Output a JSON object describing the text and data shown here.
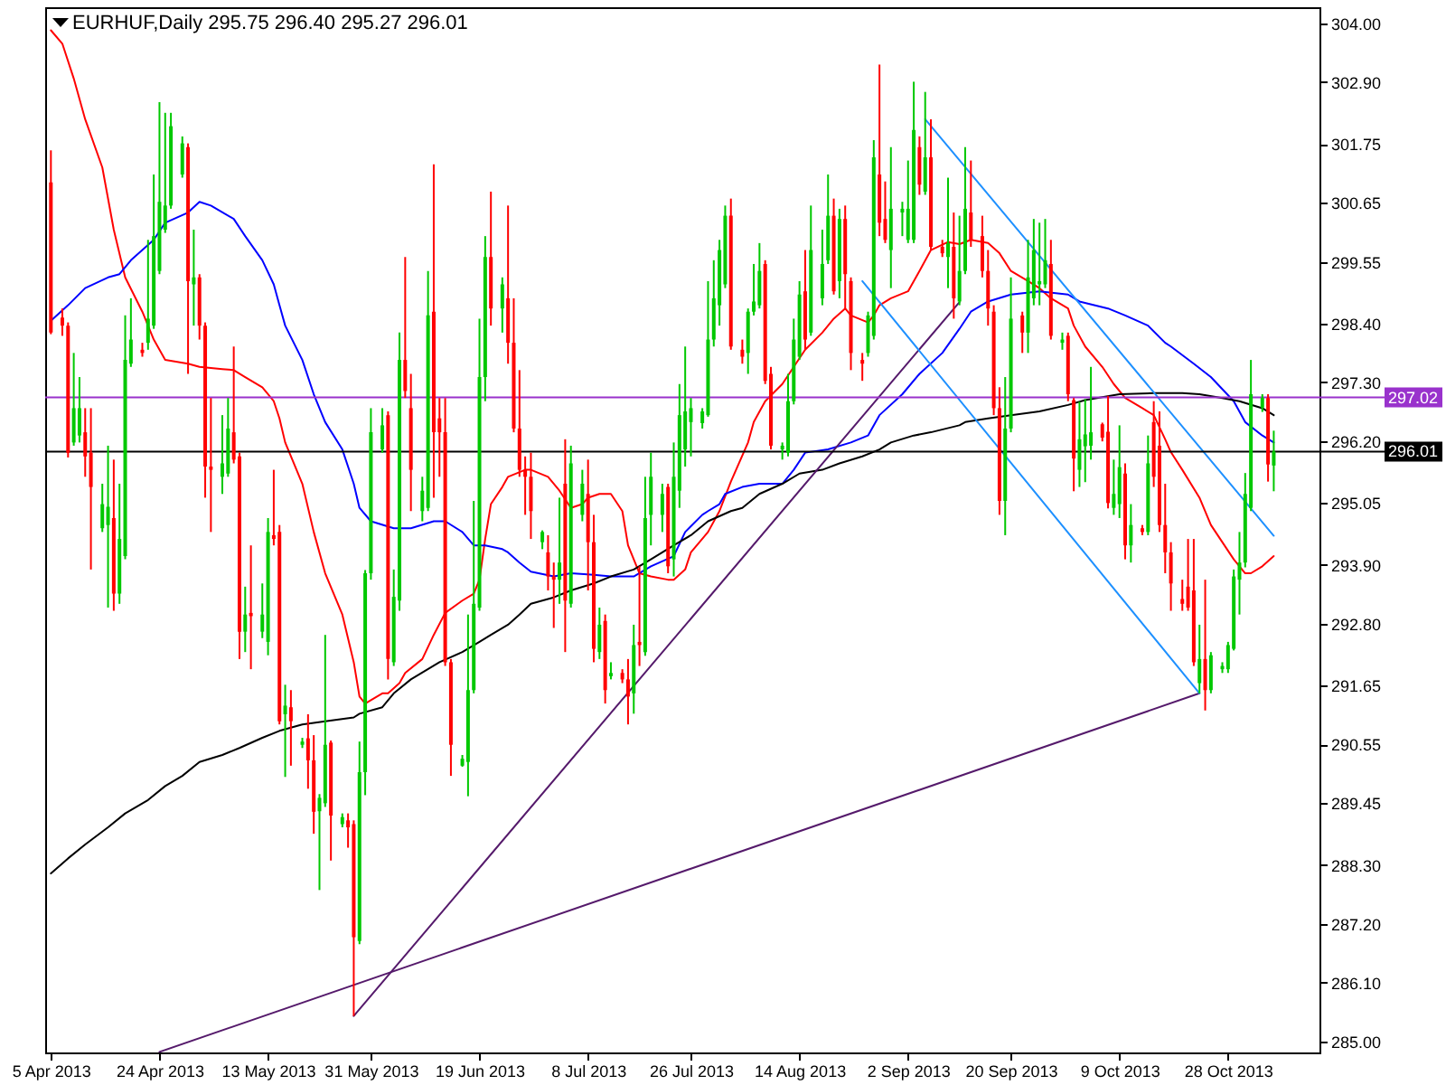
{
  "chart_data": {
    "type": "candlestick",
    "title": "EURHUF,Daily 295.75 296.40 295.27 296.01",
    "x": [
      "2013-04-05",
      "2013-04-07",
      "2013-04-08",
      "2013-04-09",
      "2013-04-10",
      "2013-04-11",
      "2013-04-12",
      "2013-04-14",
      "2013-04-15",
      "2013-04-16",
      "2013-04-17",
      "2013-04-18",
      "2013-04-19",
      "2013-04-21",
      "2013-04-22",
      "2013-04-23",
      "2013-04-24",
      "2013-04-25",
      "2013-04-26",
      "2013-04-28",
      "2013-04-29",
      "2013-04-30",
      "2013-05-01",
      "2013-05-02",
      "2013-05-03",
      "2013-05-05",
      "2013-05-06",
      "2013-05-07",
      "2013-05-08",
      "2013-05-09",
      "2013-05-10",
      "2013-05-12",
      "2013-05-13",
      "2013-05-14",
      "2013-05-15",
      "2013-05-16",
      "2013-05-17",
      "2013-05-19",
      "2013-05-20",
      "2013-05-21",
      "2013-05-22",
      "2013-05-23",
      "2013-05-24",
      "2013-05-26",
      "2013-05-27",
      "2013-05-28",
      "2013-05-29",
      "2013-05-30",
      "2013-05-31",
      "2013-06-02",
      "2013-06-03",
      "2013-06-04",
      "2013-06-05",
      "2013-06-06",
      "2013-06-07",
      "2013-06-09",
      "2013-06-10",
      "2013-06-11",
      "2013-06-12",
      "2013-06-13",
      "2013-06-14",
      "2013-06-16",
      "2013-06-17",
      "2013-06-18",
      "2013-06-19",
      "2013-06-20",
      "2013-06-21",
      "2013-06-23",
      "2013-06-24",
      "2013-06-25",
      "2013-06-26",
      "2013-06-27",
      "2013-06-28",
      "2013-06-30",
      "2013-07-01",
      "2013-07-02",
      "2013-07-03",
      "2013-07-04",
      "2013-07-05",
      "2013-07-07",
      "2013-07-08",
      "2013-07-09",
      "2013-07-10",
      "2013-07-11",
      "2013-07-12",
      "2013-07-14",
      "2013-07-15",
      "2013-07-16",
      "2013-07-17",
      "2013-07-18",
      "2013-07-19",
      "2013-07-21",
      "2013-07-22",
      "2013-07-23",
      "2013-07-24",
      "2013-07-25",
      "2013-07-26",
      "2013-07-28",
      "2013-07-29",
      "2013-07-30",
      "2013-07-31",
      "2013-08-01",
      "2013-08-02",
      "2013-08-04",
      "2013-08-05",
      "2013-08-06",
      "2013-08-07",
      "2013-08-08",
      "2013-08-09",
      "2013-08-11",
      "2013-08-12",
      "2013-08-13",
      "2013-08-14",
      "2013-08-15",
      "2013-08-16",
      "2013-08-18",
      "2013-08-19",
      "2013-08-20",
      "2013-08-21",
      "2013-08-22",
      "2013-08-23",
      "2013-08-25",
      "2013-08-26",
      "2013-08-27",
      "2013-08-28",
      "2013-08-29",
      "2013-08-30",
      "2013-09-01",
      "2013-09-02",
      "2013-09-03",
      "2013-09-04",
      "2013-09-05",
      "2013-09-06",
      "2013-09-08",
      "2013-09-09",
      "2013-09-10",
      "2013-09-11",
      "2013-09-12",
      "2013-09-13",
      "2013-09-15",
      "2013-09-16",
      "2013-09-17",
      "2013-09-18",
      "2013-09-19",
      "2013-09-20",
      "2013-09-22",
      "2013-09-23",
      "2013-09-24",
      "2013-09-25",
      "2013-09-26",
      "2013-09-27",
      "2013-09-29",
      "2013-09-30",
      "2013-10-01",
      "2013-10-02",
      "2013-10-03",
      "2013-10-04",
      "2013-10-06",
      "2013-10-07",
      "2013-10-08",
      "2013-10-09",
      "2013-10-10",
      "2013-10-11",
      "2013-10-13",
      "2013-10-14",
      "2013-10-15",
      "2013-10-16",
      "2013-10-17",
      "2013-10-18",
      "2013-10-20",
      "2013-10-21",
      "2013-10-22",
      "2013-10-23",
      "2013-10-24",
      "2013-10-25",
      "2013-10-27",
      "2013-10-28",
      "2013-10-29",
      "2013-10-30",
      "2013-10-31",
      "2013-11-01",
      "2013-11-03",
      "2013-11-04",
      "2013-11-05"
    ],
    "ohlc": [
      [
        301.03,
        301.63,
        298.2,
        298.23
      ],
      [
        298.51,
        298.68,
        298.17,
        298.36
      ],
      [
        298.36,
        298.42,
        295.9,
        295.99
      ],
      [
        296.18,
        297.85,
        296.12,
        296.82
      ],
      [
        296.31,
        297.4,
        296.18,
        296.82
      ],
      [
        296.37,
        296.82,
        295.54,
        295.92
      ],
      [
        295.99,
        296.82,
        293.81,
        295.35
      ],
      [
        294.58,
        295.41,
        294.51,
        295.03
      ],
      [
        294.64,
        296.12,
        293.1,
        294.98
      ],
      [
        294.77,
        295.86,
        293.04,
        293.36
      ],
      [
        293.36,
        295.41,
        293.17,
        294.38
      ],
      [
        294.06,
        298.55,
        294.0,
        297.72
      ],
      [
        297.65,
        298.87,
        297.59,
        298.1
      ],
      [
        297.91,
        298.04,
        297.78,
        297.85
      ],
      [
        298.04,
        299.96,
        297.91,
        298.49
      ],
      [
        298.36,
        301.18,
        298.3,
        300.03
      ],
      [
        299.38,
        302.53,
        299.32,
        300.67
      ],
      [
        300.15,
        302.33,
        300.09,
        300.6
      ],
      [
        300.6,
        302.33,
        300.54,
        302.08
      ],
      [
        301.18,
        301.89,
        301.12,
        301.76
      ],
      [
        301.69,
        301.76,
        297.46,
        299.19
      ],
      [
        299.13,
        300.15,
        298.36,
        299.26
      ],
      [
        299.26,
        299.32,
        298.1,
        298.36
      ],
      [
        298.36,
        298.42,
        295.15,
        295.73
      ],
      [
        295.73,
        297.01,
        294.51,
        295.67
      ],
      [
        295.54,
        296.69,
        295.22,
        295.79
      ],
      [
        295.6,
        297.01,
        295.54,
        296.44
      ],
      [
        296.37,
        297.97,
        295.79,
        295.86
      ],
      [
        295.92,
        295.99,
        292.14,
        292.65
      ],
      [
        292.65,
        293.49,
        292.27,
        292.97
      ],
      [
        293.0,
        294.26,
        291.95,
        292.94
      ],
      [
        292.65,
        293.55,
        292.53,
        292.97
      ],
      [
        292.46,
        294.77,
        292.21,
        294.51
      ],
      [
        294.45,
        295.67,
        294.26,
        294.38
      ],
      [
        294.51,
        294.64,
        290.92,
        290.98
      ],
      [
        291.11,
        291.66,
        289.94,
        291.27
      ],
      [
        291.24,
        291.56,
        290.15,
        290.98
      ],
      [
        290.54,
        290.67,
        290.48,
        290.6
      ],
      [
        290.66,
        291.11,
        289.72,
        290.25
      ],
      [
        290.25,
        290.72,
        288.88,
        289.29
      ],
      [
        289.3,
        289.62,
        287.83,
        289.55
      ],
      [
        289.45,
        292.59,
        289.38,
        290.54
      ],
      [
        290.58,
        290.62,
        288.38,
        289.22
      ],
      [
        289.06,
        289.26,
        289.0,
        289.19
      ],
      [
        289.13,
        289.26,
        288.62,
        289.0
      ],
      [
        289.06,
        289.13,
        285.48,
        286.95
      ],
      [
        286.88,
        290.6,
        286.82,
        290.03
      ],
      [
        290.03,
        293.8,
        289.6,
        293.74
      ],
      [
        293.74,
        296.82,
        293.62,
        296.37
      ],
      [
        296.05,
        296.82,
        295.99,
        296.5
      ],
      [
        296.69,
        296.76,
        291.76,
        292.14
      ],
      [
        292.08,
        293.81,
        292.01,
        293.3
      ],
      [
        293.23,
        298.23,
        293.04,
        297.72
      ],
      [
        297.72,
        299.64,
        297.01,
        297.14
      ],
      [
        296.82,
        297.46,
        294.9,
        295.67
      ],
      [
        294.9,
        295.54,
        294.71,
        295.28
      ],
      [
        294.96,
        299.38,
        294.9,
        298.55
      ],
      [
        298.62,
        301.37,
        295.15,
        296.37
      ],
      [
        296.63,
        297.01,
        295.54,
        296.37
      ],
      [
        296.37,
        297.01,
        292.01,
        292.08
      ],
      [
        292.08,
        292.14,
        289.96,
        290.54
      ],
      [
        290.15,
        290.35,
        290.13,
        290.28
      ],
      [
        290.22,
        292.97,
        289.58,
        291.56
      ],
      [
        291.56,
        295.09,
        291.5,
        293.17
      ],
      [
        293.1,
        298.49,
        293.04,
        297.4
      ],
      [
        297.4,
        300.03,
        296.95,
        299.64
      ],
      [
        299.64,
        300.86,
        298.36,
        298.68
      ],
      [
        298.68,
        299.26,
        298.23,
        299.13
      ],
      [
        298.87,
        300.6,
        297.65,
        298.04
      ],
      [
        298.04,
        298.87,
        296.37,
        296.44
      ],
      [
        296.44,
        297.53,
        295.54,
        295.67
      ],
      [
        295.67,
        295.92,
        294.83,
        295.54
      ],
      [
        295.54,
        295.99,
        294.38,
        294.9
      ],
      [
        294.32,
        294.54,
        294.19,
        294.51
      ],
      [
        294.13,
        294.45,
        293.42,
        293.68
      ],
      [
        293.68,
        293.94,
        292.72,
        293.62
      ],
      [
        293.62,
        295.15,
        293.17,
        293.94
      ],
      [
        295.41,
        296.24,
        292.27,
        293.23
      ],
      [
        293.17,
        296.12,
        293.1,
        295.79
      ],
      [
        294.83,
        295.67,
        294.71,
        295.41
      ],
      [
        295.22,
        295.86,
        293.42,
        294.32
      ],
      [
        294.32,
        294.83,
        292.08,
        292.33
      ],
      [
        292.27,
        293.1,
        292.14,
        292.78
      ],
      [
        292.85,
        292.97,
        291.31,
        291.56
      ],
      [
        291.82,
        292.08,
        291.76,
        291.88
      ],
      [
        291.88,
        291.95,
        291.69,
        291.76
      ],
      [
        291.76,
        292.14,
        290.92,
        291.44
      ],
      [
        291.5,
        292.78,
        291.12,
        292.4
      ],
      [
        292.46,
        293.87,
        292.01,
        292.4
      ],
      [
        292.27,
        295.54,
        292.2,
        294.77
      ],
      [
        294.83,
        295.99,
        294.26,
        295.54
      ],
      [
        294.83,
        295.41,
        294.51,
        295.22
      ],
      [
        295.35,
        295.41,
        293.74,
        293.87
      ],
      [
        294.0,
        296.18,
        293.68,
        295.54
      ],
      [
        295.28,
        297.27,
        294.96,
        296.69
      ],
      [
        296.05,
        297.97,
        295.73,
        296.76
      ],
      [
        296.56,
        297.01,
        295.92,
        296.82
      ],
      [
        296.54,
        296.82,
        296.44,
        296.76
      ],
      [
        296.69,
        299.19,
        296.66,
        298.1
      ],
      [
        298.1,
        299.58,
        297.97,
        298.87
      ],
      [
        298.74,
        299.96,
        298.36,
        299.77
      ],
      [
        299.13,
        300.6,
        299.06,
        300.41
      ],
      [
        300.41,
        300.73,
        297.91,
        297.97
      ],
      [
        297.91,
        298.1,
        297.65,
        297.78
      ],
      [
        297.85,
        298.68,
        297.46,
        298.62
      ],
      [
        298.62,
        299.51,
        298.55,
        298.81
      ],
      [
        298.74,
        299.9,
        298.68,
        299.38
      ],
      [
        299.51,
        299.58,
        297.27,
        297.33
      ],
      [
        297.46,
        297.59,
        296.05,
        296.12
      ],
      [
        296.05,
        296.18,
        295.86,
        296.12
      ],
      [
        295.99,
        297.46,
        295.92,
        296.95
      ],
      [
        296.95,
        298.49,
        296.89,
        298.1
      ],
      [
        297.78,
        299.19,
        297.72,
        298.94
      ],
      [
        299.0,
        299.77,
        297.91,
        298.1
      ],
      [
        298.23,
        300.6,
        298.17,
        299.77
      ],
      [
        298.87,
        300.15,
        298.74,
        299.51
      ],
      [
        299.58,
        301.18,
        299.51,
        300.41
      ],
      [
        300.41,
        300.73,
        298.94,
        299.0
      ],
      [
        299.19,
        300.54,
        298.87,
        300.35
      ],
      [
        300.35,
        300.6,
        298.68,
        299.32
      ],
      [
        299.19,
        299.26,
        297.53,
        297.85
      ],
      [
        297.72,
        297.85,
        297.33,
        297.65
      ],
      [
        297.85,
        298.62,
        297.78,
        298.55
      ],
      [
        298.17,
        301.82,
        298.1,
        301.5
      ],
      [
        301.18,
        303.23,
        300.03,
        300.28
      ],
      [
        300.35,
        301.05,
        299.9,
        299.96
      ],
      [
        299.77,
        301.69,
        299.06,
        300.54
      ],
      [
        300.47,
        300.67,
        300.03,
        300.54
      ],
      [
        299.96,
        301.44,
        299.9,
        300.54
      ],
      [
        299.96,
        302.91,
        299.9,
        302.01
      ],
      [
        301.69,
        301.89,
        300.8,
        300.99
      ],
      [
        300.86,
        302.72,
        300.8,
        301.5
      ],
      [
        301.5,
        302.21,
        299.77,
        299.83
      ],
      [
        299.83,
        299.96,
        299.64,
        299.71
      ],
      [
        299.64,
        301.12,
        299.06,
        299.9
      ],
      [
        299.83,
        300.47,
        298.49,
        298.87
      ],
      [
        298.81,
        300.41,
        298.74,
        299.38
      ],
      [
        299.38,
        301.69,
        299.32,
        300.54
      ],
      [
        300.47,
        301.44,
        299.83,
        299.96
      ],
      [
        300.03,
        300.41,
        299.26,
        299.38
      ],
      [
        299.38,
        299.77,
        298.36,
        298.68
      ],
      [
        298.62,
        298.74,
        296.69,
        296.82
      ],
      [
        296.82,
        297.21,
        294.83,
        295.09
      ],
      [
        295.09,
        297.4,
        294.45,
        296.44
      ],
      [
        296.44,
        299.26,
        296.37,
        298.49
      ],
      [
        298.55,
        298.62,
        297.85,
        298.23
      ],
      [
        298.23,
        299.96,
        297.85,
        299.26
      ],
      [
        298.87,
        300.35,
        298.74,
        299.77
      ],
      [
        299.13,
        300.28,
        298.74,
        299.19
      ],
      [
        299.13,
        300.35,
        299.06,
        299.58
      ],
      [
        299.51,
        299.96,
        298.1,
        298.17
      ],
      [
        298.04,
        298.23,
        297.91,
        298.1
      ],
      [
        298.17,
        298.23,
        296.95,
        297.08
      ],
      [
        296.97,
        297.01,
        295.27,
        295.88
      ],
      [
        295.67,
        296.94,
        295.35,
        296.24
      ],
      [
        296.11,
        296.99,
        295.44,
        296.33
      ],
      [
        296.12,
        297.59,
        295.86,
        296.37
      ],
      [
        296.52,
        296.55,
        296.2,
        296.27
      ],
      [
        296.38,
        297.05,
        294.95,
        295.05
      ],
      [
        294.96,
        295.86,
        294.83,
        295.22
      ],
      [
        295.03,
        296.5,
        294.77,
        295.72
      ],
      [
        295.6,
        295.79,
        294.0,
        294.26
      ],
      [
        294.26,
        295.03,
        293.94,
        294.64
      ],
      [
        294.58,
        294.64,
        294.45,
        294.51
      ],
      [
        294.51,
        296.31,
        294.45,
        295.79
      ],
      [
        296.56,
        296.95,
        295.35,
        295.54
      ],
      [
        296.12,
        296.76,
        294.51,
        294.64
      ],
      [
        294.64,
        295.41,
        293.74,
        294.13
      ],
      [
        294.13,
        294.32,
        293.04,
        293.55
      ],
      [
        293.26,
        293.62,
        293.04,
        293.17
      ],
      [
        293.49,
        294.38,
        293.04,
        293.1
      ],
      [
        293.42,
        294.38,
        292.01,
        292.08
      ],
      [
        291.69,
        292.78,
        291.5,
        292.14
      ],
      [
        292.14,
        293.62,
        291.18,
        291.56
      ],
      [
        291.56,
        292.27,
        291.5,
        292.21
      ],
      [
        291.95,
        292.08,
        291.88,
        292.01
      ],
      [
        291.95,
        292.46,
        291.88,
        292.4
      ],
      [
        292.33,
        293.81,
        292.3,
        293.68
      ],
      [
        293.62,
        294.51,
        292.97,
        293.94
      ],
      [
        293.94,
        295.61,
        293.85,
        295.22
      ],
      [
        294.96,
        297.72,
        294.9,
        297.08
      ],
      [
        296.83,
        297.08,
        296.75,
        297.01
      ],
      [
        297.01,
        297.08,
        295.45,
        295.77
      ],
      [
        295.75,
        296.4,
        295.27,
        296.01
      ]
    ],
    "colors": [
      "#ff0000",
      "#ff0000",
      "#ff0000",
      "#00c800",
      "#00c800",
      "#ff0000",
      "#ff0000",
      "#00c800",
      "#00c800",
      "#ff0000",
      "#00c800",
      "#00c800",
      "#00c800",
      "#ff0000",
      "#00c800",
      "#00c800",
      "#00c800",
      "#00c800",
      "#00c800",
      "#00c800",
      "#ff0000",
      "#00c800",
      "#ff0000",
      "#ff0000",
      "#ff0000",
      "#00c800",
      "#00c800",
      "#ff0000",
      "#ff0000",
      "#00c800",
      "#ff0000",
      "#00c800",
      "#00c800",
      "#ff0000",
      "#ff0000",
      "#00c800",
      "#ff0000",
      "#00c800",
      "#ff0000",
      "#ff0000",
      "#00c800",
      "#00c800",
      "#ff0000",
      "#00c800",
      "#ff0000",
      "#ff0000",
      "#00c800",
      "#00c800",
      "#00c800",
      "#00c800",
      "#ff0000",
      "#00c800",
      "#00c800",
      "#ff0000",
      "#ff0000",
      "#00c800",
      "#00c800",
      "#ff0000",
      "#ff0000",
      "#ff0000",
      "#ff0000",
      "#00c800",
      "#00c800",
      "#00c800",
      "#00c800",
      "#00c800",
      "#ff0000",
      "#00c800",
      "#ff0000",
      "#ff0000",
      "#ff0000",
      "#ff0000",
      "#ff0000",
      "#00c800",
      "#ff0000",
      "#ff0000",
      "#00c800",
      "#ff0000",
      "#00c800",
      "#00c800",
      "#ff0000",
      "#ff0000",
      "#00c800",
      "#ff0000",
      "#00c800",
      "#ff0000",
      "#ff0000",
      "#00c800",
      "#ff0000",
      "#00c800",
      "#00c800",
      "#00c800",
      "#ff0000",
      "#00c800",
      "#00c800",
      "#00c800",
      "#00c800",
      "#00c800",
      "#00c800",
      "#00c800",
      "#00c800",
      "#00c800",
      "#ff0000",
      "#ff0000",
      "#00c800",
      "#00c800",
      "#00c800",
      "#ff0000",
      "#ff0000",
      "#00c800",
      "#00c800",
      "#00c800",
      "#00c800",
      "#ff0000",
      "#00c800",
      "#00c800",
      "#00c800",
      "#ff0000",
      "#00c800",
      "#ff0000",
      "#ff0000",
      "#ff0000",
      "#00c800",
      "#00c800",
      "#ff0000",
      "#ff0000",
      "#00c800",
      "#00c800",
      "#00c800",
      "#00c800",
      "#ff0000",
      "#00c800",
      "#ff0000",
      "#ff0000",
      "#00c800",
      "#ff0000",
      "#00c800",
      "#00c800",
      "#ff0000",
      "#ff0000",
      "#ff0000",
      "#ff0000",
      "#ff0000",
      "#00c800",
      "#00c800",
      "#ff0000",
      "#00c800",
      "#00c800",
      "#00c800",
      "#00c800",
      "#ff0000",
      "#00c800",
      "#ff0000",
      "#ff0000",
      "#00c800",
      "#00c800",
      "#00c800",
      "#ff0000",
      "#ff0000",
      "#00c800",
      "#00c800",
      "#ff0000",
      "#00c800",
      "#ff0000",
      "#00c800",
      "#ff0000",
      "#ff0000",
      "#ff0000",
      "#ff0000",
      "#ff0000",
      "#ff0000",
      "#ff0000",
      "#00c800",
      "#ff0000",
      "#00c800",
      "#00c800",
      "#00c800",
      "#00c800",
      "#00c800",
      "#00c800",
      "#00c800",
      "#00c800",
      "#ff0000",
      "#00c800"
    ],
    "series": [
      {
        "type": "line",
        "color": "#ff0000",
        "x": [
          "2013-04-05",
          "2013-04-07",
          "2013-04-09",
          "2013-04-11",
          "2013-04-14",
          "2013-04-16",
          "2013-04-18",
          "2013-04-21",
          "2013-04-23",
          "2013-04-25",
          "2013-04-29",
          "2013-05-01",
          "2013-05-05",
          "2013-05-07",
          "2013-05-09",
          "2013-05-12",
          "2013-05-14",
          "2013-05-15",
          "2013-05-16",
          "2013-05-19",
          "2013-05-21",
          "2013-05-23",
          "2013-05-26",
          "2013-05-28",
          "2013-05-29",
          "2013-05-30",
          "2013-06-02",
          "2013-06-03",
          "2013-06-05",
          "2013-06-06",
          "2013-06-09",
          "2013-06-11",
          "2013-06-13",
          "2013-06-16",
          "2013-06-18",
          "2013-06-19",
          "2013-06-20",
          "2013-06-21",
          "2013-06-23",
          "2013-06-24",
          "2013-06-27",
          "2013-06-28",
          "2013-07-01",
          "2013-07-03",
          "2013-07-05",
          "2013-07-07",
          "2013-07-08",
          "2013-07-10",
          "2013-07-12",
          "2013-07-14",
          "2013-07-15",
          "2013-07-17",
          "2013-07-19",
          "2013-07-22",
          "2013-07-23",
          "2013-07-25",
          "2013-07-26",
          "2013-07-29",
          "2013-07-31",
          "2013-08-02",
          "2013-08-05",
          "2013-08-06",
          "2013-08-08",
          "2013-08-11",
          "2013-08-13",
          "2013-08-15",
          "2013-08-18",
          "2013-08-20",
          "2013-08-22",
          "2013-08-23",
          "2013-08-26",
          "2013-08-27",
          "2013-08-28",
          "2013-08-30",
          "2013-09-02",
          "2013-09-04",
          "2013-09-06",
          "2013-09-09",
          "2013-09-11",
          "2013-09-13",
          "2013-09-16",
          "2013-09-18",
          "2013-09-20",
          "2013-09-23",
          "2013-09-25",
          "2013-09-27",
          "2013-09-30",
          "2013-10-01",
          "2013-10-03",
          "2013-10-06",
          "2013-10-08",
          "2013-10-10",
          "2013-10-13",
          "2013-10-15",
          "2013-10-17",
          "2013-10-18",
          "2013-10-20",
          "2013-10-23",
          "2013-10-25",
          "2013-10-29",
          "2013-10-31",
          "2013-11-01",
          "2013-11-03",
          "2013-11-05"
        ],
        "values": [
          303.87,
          303.62,
          302.97,
          302.21,
          301.31,
          300.15,
          299.26,
          298.62,
          298.1,
          297.72,
          297.65,
          297.59,
          297.55,
          297.53,
          297.4,
          297.21,
          296.95,
          296.63,
          296.18,
          295.41,
          294.51,
          293.74,
          292.97,
          292.08,
          291.44,
          291.31,
          291.5,
          291.5,
          291.69,
          291.88,
          292.14,
          292.59,
          293.0,
          293.23,
          293.36,
          293.62,
          294.38,
          295.03,
          295.35,
          295.54,
          295.67,
          295.67,
          295.54,
          295.28,
          294.96,
          295.03,
          295.15,
          295.22,
          295.22,
          294.9,
          294.26,
          293.74,
          293.68,
          293.62,
          293.62,
          293.81,
          294.13,
          294.51,
          294.9,
          295.45,
          296.18,
          296.56,
          296.95,
          297.27,
          297.59,
          297.91,
          298.23,
          298.49,
          298.68,
          298.55,
          298.42,
          298.55,
          298.74,
          298.87,
          299.0,
          299.38,
          299.77,
          299.92,
          299.88,
          299.96,
          299.9,
          299.71,
          299.38,
          299.19,
          299.06,
          298.87,
          298.68,
          298.36,
          297.97,
          297.59,
          297.27,
          297.01,
          296.82,
          296.69,
          296.24,
          296.0,
          295.67,
          295.15,
          294.64,
          294.0,
          293.74,
          293.74,
          293.87,
          294.06
        ]
      },
      {
        "type": "line",
        "color": "#0000ff",
        "x": [
          "2013-04-05",
          "2013-04-08",
          "2013-04-11",
          "2013-04-15",
          "2013-04-17",
          "2013-04-19",
          "2013-04-23",
          "2013-04-25",
          "2013-04-29",
          "2013-05-01",
          "2013-05-03",
          "2013-05-07",
          "2013-05-09",
          "2013-05-12",
          "2013-05-14",
          "2013-05-15",
          "2013-05-16",
          "2013-05-19",
          "2013-05-21",
          "2013-05-23",
          "2013-05-26",
          "2013-05-28",
          "2013-05-29",
          "2013-05-31",
          "2013-06-04",
          "2013-06-07",
          "2013-06-11",
          "2013-06-13",
          "2013-06-16",
          "2013-06-18",
          "2013-06-20",
          "2013-06-23",
          "2013-06-24",
          "2013-06-26",
          "2013-06-28",
          "2013-07-02",
          "2013-07-05",
          "2013-07-09",
          "2013-07-12",
          "2013-07-16",
          "2013-07-19",
          "2013-07-23",
          "2013-07-25",
          "2013-07-28",
          "2013-07-29",
          "2013-07-31",
          "2013-08-01",
          "2013-08-04",
          "2013-08-07",
          "2013-08-11",
          "2013-08-13",
          "2013-08-15",
          "2013-08-19",
          "2013-08-23",
          "2013-08-26",
          "2013-08-28",
          "2013-09-01",
          "2013-09-04",
          "2013-09-08",
          "2013-09-11",
          "2013-09-13",
          "2013-09-16",
          "2013-09-20",
          "2013-09-25",
          "2013-09-30",
          "2013-10-02",
          "2013-10-07",
          "2013-10-10",
          "2013-10-14",
          "2013-10-17",
          "2013-10-18",
          "2013-10-22",
          "2013-10-25",
          "2013-10-29",
          "2013-10-31",
          "2013-11-03",
          "2013-11-05"
        ],
        "values": [
          298.45,
          298.74,
          299.06,
          299.26,
          299.32,
          299.58,
          299.96,
          300.28,
          300.47,
          300.67,
          300.6,
          300.35,
          300.03,
          299.58,
          299.13,
          298.74,
          298.36,
          297.72,
          297.08,
          296.56,
          296.05,
          295.41,
          294.96,
          294.71,
          294.58,
          294.58,
          294.71,
          294.71,
          294.51,
          294.26,
          294.26,
          294.19,
          294.13,
          293.94,
          293.77,
          293.68,
          293.74,
          293.71,
          293.68,
          293.68,
          293.87,
          294.06,
          294.51,
          294.83,
          294.9,
          295.03,
          295.22,
          295.35,
          295.41,
          295.41,
          295.67,
          295.99,
          296.05,
          296.18,
          296.31,
          296.69,
          297.08,
          297.46,
          297.85,
          298.3,
          298.62,
          298.81,
          298.94,
          299.0,
          298.94,
          298.81,
          298.68,
          298.55,
          298.36,
          298.04,
          297.97,
          297.65,
          297.4,
          296.95,
          296.56,
          296.31,
          296.18
        ]
      },
      {
        "type": "line",
        "color": "#000000",
        "x": [
          "2013-04-05",
          "2013-04-08",
          "2013-04-11",
          "2013-04-15",
          "2013-04-18",
          "2013-04-22",
          "2013-04-25",
          "2013-04-28",
          "2013-05-01",
          "2013-05-05",
          "2013-05-08",
          "2013-05-12",
          "2013-05-15",
          "2013-05-19",
          "2013-05-23",
          "2013-05-28",
          "2013-05-29",
          "2013-06-02",
          "2013-06-04",
          "2013-06-07",
          "2013-06-12",
          "2013-06-16",
          "2013-06-19",
          "2013-06-21",
          "2013-06-24",
          "2013-06-26",
          "2013-06-28",
          "2013-07-02",
          "2013-07-05",
          "2013-07-09",
          "2013-07-12",
          "2013-07-16",
          "2013-07-19",
          "2013-07-23",
          "2013-07-26",
          "2013-07-29",
          "2013-08-02",
          "2013-08-04",
          "2013-08-07",
          "2013-08-11",
          "2013-08-14",
          "2013-08-18",
          "2013-08-21",
          "2013-08-25",
          "2013-08-28",
          "2013-08-30",
          "2013-09-03",
          "2013-09-06",
          "2013-09-11",
          "2013-09-12",
          "2013-09-16",
          "2013-09-20",
          "2013-09-25",
          "2013-09-30",
          "2013-10-03",
          "2013-10-09",
          "2013-10-15",
          "2013-10-20",
          "2013-10-23",
          "2013-10-27",
          "2013-10-30",
          "2013-11-03",
          "2013-11-05"
        ],
        "values": [
          288.14,
          288.42,
          288.68,
          289.0,
          289.26,
          289.51,
          289.77,
          289.96,
          290.22,
          290.35,
          290.48,
          290.67,
          290.8,
          290.92,
          290.98,
          291.05,
          291.12,
          291.24,
          291.5,
          291.76,
          292.08,
          292.27,
          292.46,
          292.59,
          292.78,
          292.97,
          293.17,
          293.29,
          293.42,
          293.55,
          293.68,
          293.81,
          294.0,
          294.26,
          294.45,
          294.71,
          294.9,
          294.96,
          295.22,
          295.41,
          295.6,
          295.67,
          295.79,
          295.92,
          296.05,
          296.18,
          296.31,
          296.37,
          296.5,
          296.56,
          296.63,
          296.69,
          296.76,
          296.88,
          296.97,
          297.08,
          297.1,
          297.1,
          297.08,
          297.01,
          296.95,
          296.82,
          296.69
        ]
      },
      {
        "type": "line",
        "color": "#551a6b",
        "x": [
          "2013-04-24",
          "2013-10-23"
        ],
        "values": [
          284.81,
          291.5
        ]
      },
      {
        "type": "line",
        "color": "#551a6b",
        "x": [
          "2013-05-28",
          "2013-09-11"
        ],
        "values": [
          285.48,
          298.8
        ]
      },
      {
        "type": "line",
        "color": "#1e90ff",
        "x": [
          "2013-09-05",
          "2013-11-05"
        ],
        "values": [
          302.21,
          294.44
        ]
      },
      {
        "type": "line",
        "color": "#1e90ff",
        "x": [
          "2013-08-25",
          "2013-10-23"
        ],
        "values": [
          299.19,
          291.5
        ]
      }
    ],
    "xlim": [
      "2013-04-04",
      "2013-11-13"
    ],
    "xticks": [
      {
        "value": "2013-04-05",
        "label": "5 Apr 2013"
      },
      {
        "value": "2013-04-24",
        "label": "24 Apr 2013"
      },
      {
        "value": "2013-05-13",
        "label": "13 May 2013"
      },
      {
        "value": "2013-05-31",
        "label": "31 May 2013"
      },
      {
        "value": "2013-06-19",
        "label": "19 Jun 2013"
      },
      {
        "value": "2013-07-08",
        "label": "8 Jul 2013"
      },
      {
        "value": "2013-07-26",
        "label": "26 Jul 2013"
      },
      {
        "value": "2013-08-14",
        "label": "14 Aug 2013"
      },
      {
        "value": "2013-09-02",
        "label": "2 Sep 2013"
      },
      {
        "value": "2013-09-20",
        "label": "20 Sep 2013"
      },
      {
        "value": "2013-10-09",
        "label": "9 Oct 2013"
      },
      {
        "value": "2013-10-28",
        "label": "28 Oct 2013"
      }
    ],
    "ylim": [
      284.8,
      304.3
    ],
    "yticks": [
      {
        "value": 304,
        "label": "304.00"
      },
      {
        "value": 302.9,
        "label": "302.90"
      },
      {
        "value": 301.75,
        "label": "301.75"
      },
      {
        "value": 300.65,
        "label": "300.65"
      },
      {
        "value": 299.55,
        "label": "299.55"
      },
      {
        "value": 298.4,
        "label": "298.40"
      },
      {
        "value": 297.3,
        "label": "297.30"
      },
      {
        "value": 296.2,
        "label": "296.20"
      },
      {
        "value": 295.05,
        "label": "295.05"
      },
      {
        "value": 293.9,
        "label": "293.90"
      },
      {
        "value": 292.8,
        "label": "292.80"
      },
      {
        "value": 291.65,
        "label": "291.65"
      },
      {
        "value": 290.55,
        "label": "290.55"
      },
      {
        "value": 289.45,
        "label": "289.45"
      },
      {
        "value": 288.3,
        "label": "288.30"
      },
      {
        "value": 287.2,
        "label": "287.20"
      },
      {
        "value": 286.1,
        "label": "286.10"
      },
      {
        "value": 285,
        "label": "285.00"
      }
    ],
    "ref_lines": [
      {
        "axis": "y",
        "value": 297.02,
        "label": "297.02",
        "color": "#9932cc"
      },
      {
        "axis": "y",
        "value": 296.01,
        "label": "296.01",
        "color": "#000000"
      }
    ]
  }
}
